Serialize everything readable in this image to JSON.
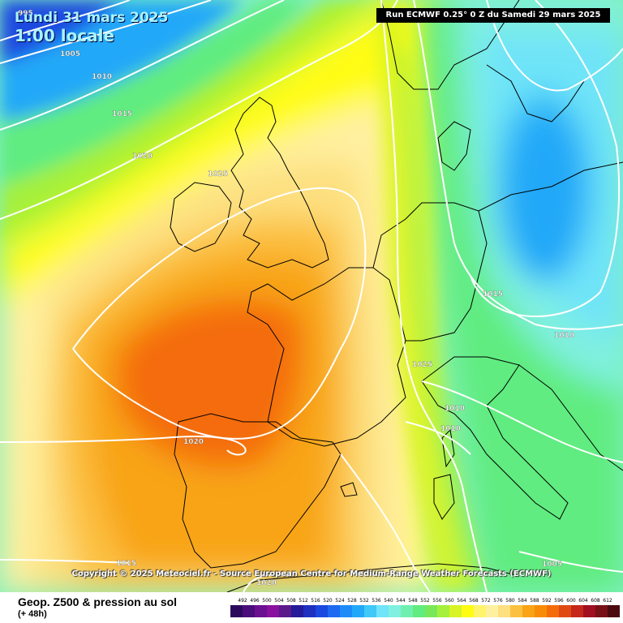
{
  "header": {
    "date_line_1": "Lundi 31 mars 2025",
    "date_line_2": "1:00 locale",
    "run_info": "Run ECMWF 0.25° 0 Z du Samedi 29 mars 2025"
  },
  "footer": {
    "copyright": "Copyright © 2025 Meteociel.fr - Source European Centre for Medium-Range Weather Forecasts (ECMWF)",
    "title": "Geop. Z500 & pression au sol",
    "subtitle": "(+ 48h)"
  },
  "isobar_labels": [
    "995",
    "1005",
    "1010",
    "1015",
    "1020",
    "1025",
    "1020",
    "1025",
    "1010",
    "1010",
    "1015",
    "1010",
    "1015",
    "1020",
    "1005"
  ],
  "legend": {
    "values": [
      "492",
      "496",
      "500",
      "504",
      "508",
      "512",
      "516",
      "520",
      "524",
      "528",
      "532",
      "536",
      "540",
      "544",
      "548",
      "552",
      "556",
      "560",
      "564",
      "568",
      "572",
      "576",
      "580",
      "584",
      "588",
      "592",
      "596",
      "600",
      "604",
      "608",
      "612"
    ],
    "colors": [
      "#2b0a5e",
      "#4a0d7a",
      "#6b1090",
      "#8a10a0",
      "#5a1a8a",
      "#241a9a",
      "#1f2fc0",
      "#1a48e0",
      "#1e6af0",
      "#1e8cf8",
      "#22a8f8",
      "#40c8f8",
      "#70e4f8",
      "#80f0e0",
      "#70f0b0",
      "#60ec80",
      "#78e85a",
      "#a4f03c",
      "#d8f424",
      "#fffc14",
      "#fff46c",
      "#fff0a0",
      "#fde080",
      "#fcc040",
      "#f8a414",
      "#f88c08",
      "#f46c0a",
      "#e04a12",
      "#c4281a",
      "#a01020",
      "#781018",
      "#4a0a10"
    ]
  }
}
